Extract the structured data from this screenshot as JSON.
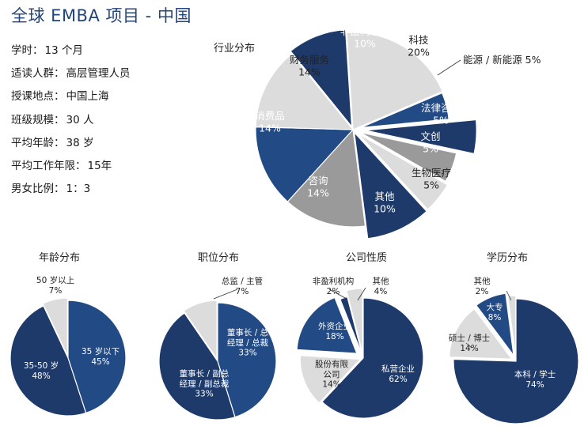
{
  "title": "全球 EMBA 项目 - 中国",
  "facts": [
    {
      "label": "学时：",
      "value": "13 个月"
    },
    {
      "label": "适读人群：",
      "value": "高层管理人员"
    },
    {
      "label": "授课地点：",
      "value": "中国上海"
    },
    {
      "label": "班级规模：",
      "value": "30 人"
    },
    {
      "label": "平均年龄：",
      "value": "38 岁"
    },
    {
      "label": "平均工作年限：",
      "value": "15年"
    },
    {
      "label": "男女比例：",
      "value": "1：3"
    }
  ],
  "colors": {
    "navy": "#1d3a6b",
    "blue": "#224a85",
    "light_gray": "#dcdcdc",
    "mid_gray": "#9a9a9a",
    "title": "#23447a"
  },
  "chart_data": [
    {
      "id": "industry",
      "type": "pie",
      "title": "行业分布",
      "categories": [
        "非盈利组织",
        "科技",
        "能源 / 新能源",
        "法律咨询",
        "文创",
        "生物医疗",
        "其他",
        "咨询",
        "消费品",
        "财务服务"
      ],
      "values": [
        10,
        20,
        5,
        5,
        5,
        5,
        10,
        14,
        14,
        14
      ],
      "value_labels": [
        "10%",
        "20%",
        "5%",
        "5%",
        "5%",
        "5%",
        "10%",
        "14%",
        "14%",
        "14%"
      ],
      "exploded": true
    },
    {
      "id": "age",
      "type": "pie",
      "title": "年龄分布",
      "categories": [
        "35 岁以下",
        "35-50 岁",
        "50 岁以上"
      ],
      "values": [
        45,
        48,
        7
      ],
      "value_labels": [
        "45%",
        "48%",
        "7%"
      ]
    },
    {
      "id": "position",
      "type": "pie",
      "title": "职位分布",
      "categories": [
        "董事长 / 总经理 / 总裁",
        "董事长 / 副总经理 / 副总裁",
        "总监 / 主管"
      ],
      "values": [
        33,
        33,
        7
      ],
      "value_labels": [
        "33%",
        "33%",
        "7%"
      ]
    },
    {
      "id": "company",
      "type": "pie",
      "title": "公司性质",
      "categories": [
        "私营企业",
        "股份有限公司",
        "外资企业",
        "非盈利机构",
        "其他"
      ],
      "values": [
        62,
        14,
        18,
        2,
        4
      ],
      "value_labels": [
        "62%",
        "14%",
        "18%",
        "2%",
        "4%"
      ]
    },
    {
      "id": "education",
      "type": "pie",
      "title": "学历分布",
      "categories": [
        "本科 / 学士",
        "硕士 / 博士",
        "大专",
        "其他"
      ],
      "values": [
        74,
        14,
        8,
        2
      ],
      "value_labels": [
        "74%",
        "14%",
        "8%",
        "2%"
      ]
    }
  ]
}
